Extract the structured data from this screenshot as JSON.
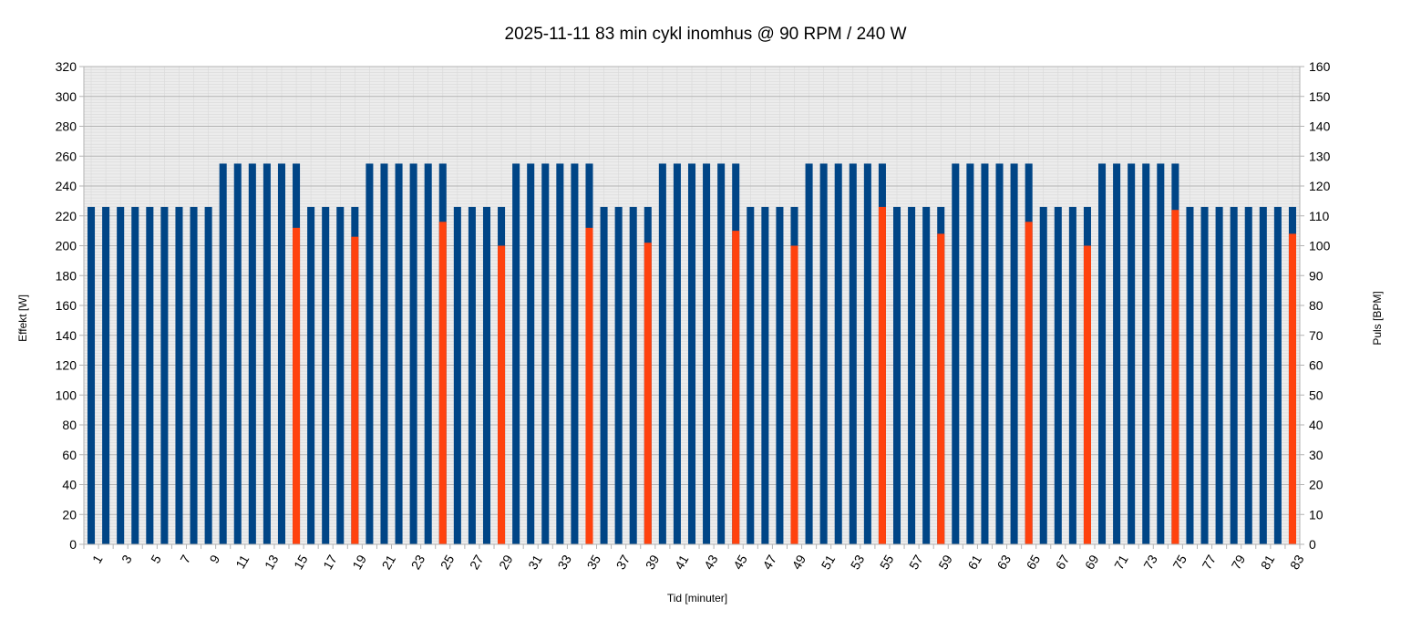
{
  "chart_data": {
    "type": "bar",
    "title": "2025-11-11 83 min cykl inomhus @ 90 RPM / 240 W",
    "xlabel": "Tid [minuter]",
    "ylabel": "Effekt [W]",
    "y2label": "Puls [BPM]",
    "ylim": [
      0,
      320
    ],
    "y2lim": [
      0,
      160
    ],
    "yticks": [
      0,
      20,
      40,
      60,
      80,
      100,
      120,
      140,
      160,
      180,
      200,
      220,
      240,
      260,
      280,
      300,
      320
    ],
    "y2ticks": [
      0,
      10,
      20,
      30,
      40,
      50,
      60,
      70,
      80,
      90,
      100,
      110,
      120,
      130,
      140,
      150,
      160
    ],
    "categories": [
      1,
      2,
      3,
      4,
      5,
      6,
      7,
      8,
      9,
      10,
      11,
      12,
      13,
      14,
      15,
      16,
      17,
      18,
      19,
      20,
      21,
      22,
      23,
      24,
      25,
      26,
      27,
      28,
      29,
      30,
      31,
      32,
      33,
      34,
      35,
      36,
      37,
      38,
      39,
      40,
      41,
      42,
      43,
      44,
      45,
      46,
      47,
      48,
      49,
      50,
      51,
      52,
      53,
      54,
      55,
      56,
      57,
      58,
      59,
      60,
      61,
      62,
      63,
      64,
      65,
      66,
      67,
      68,
      69,
      70,
      71,
      72,
      73,
      74,
      75,
      76,
      77,
      78,
      79,
      80,
      81,
      82,
      83
    ],
    "x_tick_labels": [
      1,
      3,
      5,
      7,
      9,
      11,
      13,
      15,
      17,
      19,
      21,
      23,
      25,
      27,
      29,
      31,
      33,
      35,
      37,
      39,
      41,
      43,
      45,
      47,
      49,
      51,
      53,
      55,
      57,
      59,
      61,
      63,
      65,
      67,
      69,
      71,
      73,
      75,
      77,
      79,
      81,
      83
    ],
    "grid": true,
    "series": [
      {
        "axis": "left",
        "color": "#004586",
        "values": [
          226,
          226,
          226,
          226,
          226,
          226,
          226,
          226,
          226,
          255,
          255,
          255,
          255,
          255,
          255,
          226,
          226,
          226,
          226,
          255,
          255,
          255,
          255,
          255,
          255,
          226,
          226,
          226,
          226,
          255,
          255,
          255,
          255,
          255,
          255,
          226,
          226,
          226,
          226,
          255,
          255,
          255,
          255,
          255,
          255,
          226,
          226,
          226,
          226,
          255,
          255,
          255,
          255,
          255,
          255,
          226,
          226,
          226,
          226,
          255,
          255,
          255,
          255,
          255,
          255,
          226,
          226,
          226,
          226,
          255,
          255,
          255,
          255,
          255,
          255,
          226,
          226,
          226,
          226,
          226,
          226,
          226,
          226
        ]
      },
      {
        "axis": "right",
        "color": "#ff420e",
        "points": [
          {
            "x": 15,
            "y": 106
          },
          {
            "x": 19,
            "y": 103
          },
          {
            "x": 25,
            "y": 108
          },
          {
            "x": 29,
            "y": 100
          },
          {
            "x": 35,
            "y": 106
          },
          {
            "x": 39,
            "y": 101
          },
          {
            "x": 45,
            "y": 105
          },
          {
            "x": 49,
            "y": 100
          },
          {
            "x": 55,
            "y": 113
          },
          {
            "x": 59,
            "y": 104
          },
          {
            "x": 65,
            "y": 108
          },
          {
            "x": 69,
            "y": 100
          },
          {
            "x": 75,
            "y": 112
          },
          {
            "x": 83,
            "y": 104
          }
        ]
      }
    ]
  }
}
